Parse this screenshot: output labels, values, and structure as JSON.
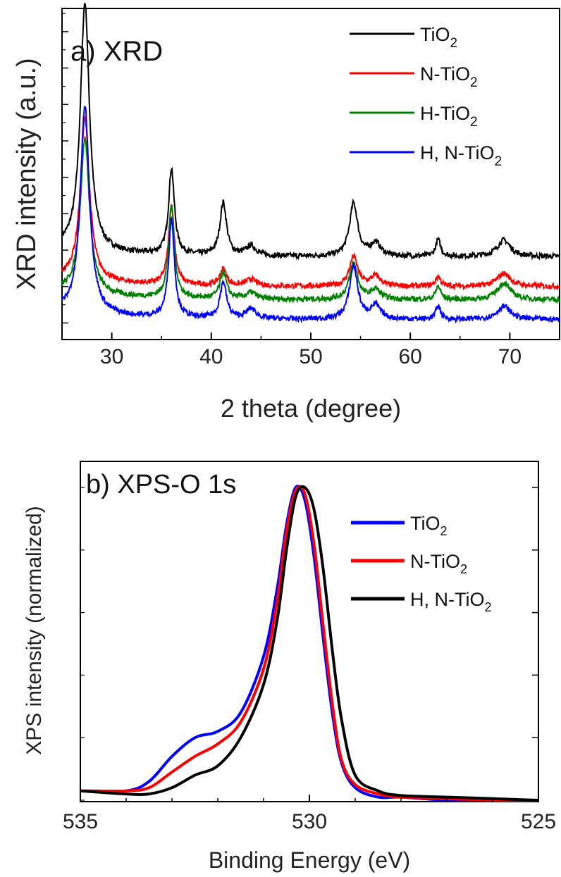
{
  "chart_data": [
    {
      "type": "line",
      "panel_label": "a) XRD",
      "xlabel": "2 theta (degree)",
      "ylabel": "XRD intensity (a.u.)",
      "xlim": [
        25,
        75
      ],
      "ylim": [
        0,
        100
      ],
      "x_ticks": [
        30,
        40,
        50,
        60,
        70
      ],
      "y_tick_labels_shown": false,
      "y_ticks_minor": [
        5,
        16,
        27,
        38,
        49,
        60,
        71,
        82,
        93
      ],
      "grid": false,
      "legend_position": "top-right",
      "peaks_2theta": [
        27.3,
        36.0,
        41.2,
        44.0,
        54.3,
        56.5,
        62.8,
        69.4
      ],
      "series": [
        {
          "name": "TiO2",
          "label_main": "TiO",
          "label_sub": "2",
          "color": "#000000",
          "baseline": 25,
          "peak_heights": [
            75,
            26,
            16,
            3,
            16,
            4,
            5,
            5
          ]
        },
        {
          "name": "N-TiO2",
          "label_main": "N-TiO",
          "label_sub": "2",
          "color": "#ff0000",
          "baseline": 16,
          "peak_heights": [
            49,
            24,
            5,
            2,
            9,
            3,
            3,
            4
          ]
        },
        {
          "name": "H-TiO2",
          "label_main": "H-TiO",
          "label_sub": "2",
          "color": "#008000",
          "baseline": 12,
          "peak_heights": [
            47,
            28,
            8,
            2,
            11,
            3,
            4,
            5
          ]
        },
        {
          "name": "H, N-TiO2",
          "label_main": "H, N-TiO",
          "label_sub": "2",
          "color": "#0000ff",
          "baseline": 6,
          "peak_heights": [
            63,
            30,
            11,
            3,
            16,
            4,
            4,
            4
          ]
        }
      ]
    },
    {
      "type": "line",
      "panel_label": "b) XPS-O 1s",
      "xlabel": "Binding Energy (eV)",
      "ylabel": "XPS intensity (normalized)",
      "xlim": [
        535,
        525
      ],
      "x_reversed": true,
      "ylim": [
        0,
        1
      ],
      "x_ticks": [
        535,
        530,
        525
      ],
      "y_tick_labels_shown": false,
      "y_ticks_minor": [
        0.0,
        0.2,
        0.4,
        0.6,
        0.8,
        1.0
      ],
      "grid": false,
      "legend_position": "middle-right",
      "series": [
        {
          "name": "TiO2",
          "label_main": "TiO",
          "label_sub": "2",
          "color": "#0000ff",
          "x": [
            535,
            534,
            533.5,
            533,
            532.5,
            532,
            531.5,
            531,
            530.7,
            530.5,
            530.3,
            530.1,
            529.9,
            529.7,
            529.5,
            529.3,
            529,
            528.5,
            528,
            527,
            526,
            525
          ],
          "y": [
            0.03,
            0.03,
            0.06,
            0.14,
            0.2,
            0.22,
            0.28,
            0.46,
            0.68,
            0.88,
            1.0,
            0.96,
            0.78,
            0.52,
            0.28,
            0.12,
            0.04,
            0.01,
            0.01,
            0.0,
            0.0,
            0.0
          ]
        },
        {
          "name": "N-TiO2",
          "label_main": "N-TiO",
          "label_sub": "2",
          "color": "#ff0000",
          "x": [
            535,
            534,
            533.5,
            533,
            532.5,
            532,
            531.5,
            531,
            530.7,
            530.5,
            530.3,
            530.1,
            529.9,
            529.7,
            529.5,
            529.3,
            529,
            528.5,
            528,
            527,
            526,
            525
          ],
          "y": [
            0.03,
            0.03,
            0.04,
            0.09,
            0.14,
            0.18,
            0.25,
            0.42,
            0.64,
            0.86,
            0.99,
            0.98,
            0.82,
            0.56,
            0.31,
            0.13,
            0.05,
            0.02,
            0.01,
            0.005,
            0.0,
            0.0
          ]
        },
        {
          "name": "H, N-TiO2",
          "label_main": "H, N-TiO",
          "label_sub": "2",
          "color": "#000000",
          "x": [
            535,
            534,
            533.5,
            533,
            532.5,
            532,
            531.5,
            531,
            530.7,
            530.5,
            530.3,
            530.1,
            529.9,
            529.7,
            529.5,
            529.3,
            529,
            528.5,
            528,
            527,
            526,
            525
          ],
          "y": [
            0.03,
            0.02,
            0.02,
            0.04,
            0.08,
            0.11,
            0.2,
            0.37,
            0.58,
            0.8,
            0.97,
            1.0,
            0.93,
            0.74,
            0.48,
            0.26,
            0.08,
            0.03,
            0.015,
            0.01,
            0.005,
            0.0
          ]
        }
      ]
    }
  ]
}
